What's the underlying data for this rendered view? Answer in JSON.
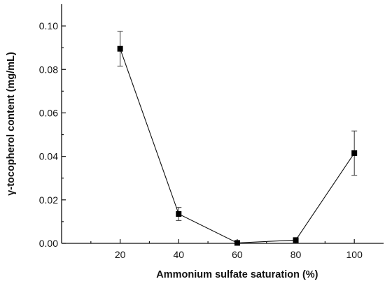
{
  "chart_data": {
    "type": "line",
    "title": "",
    "xlabel": "Ammonium sulfate saturation (%)",
    "ylabel": "γ-tocopherol content (mg/mL)",
    "xlim": [
      0,
      110
    ],
    "ylim": [
      0,
      0.11
    ],
    "x_ticks": [
      20,
      40,
      60,
      80,
      100
    ],
    "x_tick_labels": [
      "20",
      "40",
      "60",
      "80",
      "100"
    ],
    "y_ticks": [
      0.0,
      0.02,
      0.04,
      0.06,
      0.08,
      0.1
    ],
    "y_tick_labels": [
      "0.00",
      "0.02",
      "0.04",
      "0.06",
      "0.08",
      "0.10"
    ],
    "grid": false,
    "legend": "none",
    "marker": "square",
    "series": [
      {
        "x": [
          20,
          40,
          60,
          80,
          100
        ],
        "values": [
          0.0895,
          0.0135,
          0.0002,
          0.0015,
          0.0415
        ],
        "error": [
          0.008,
          0.003,
          0.0005,
          0.001,
          0.0102
        ],
        "color": "#000000"
      }
    ]
  }
}
